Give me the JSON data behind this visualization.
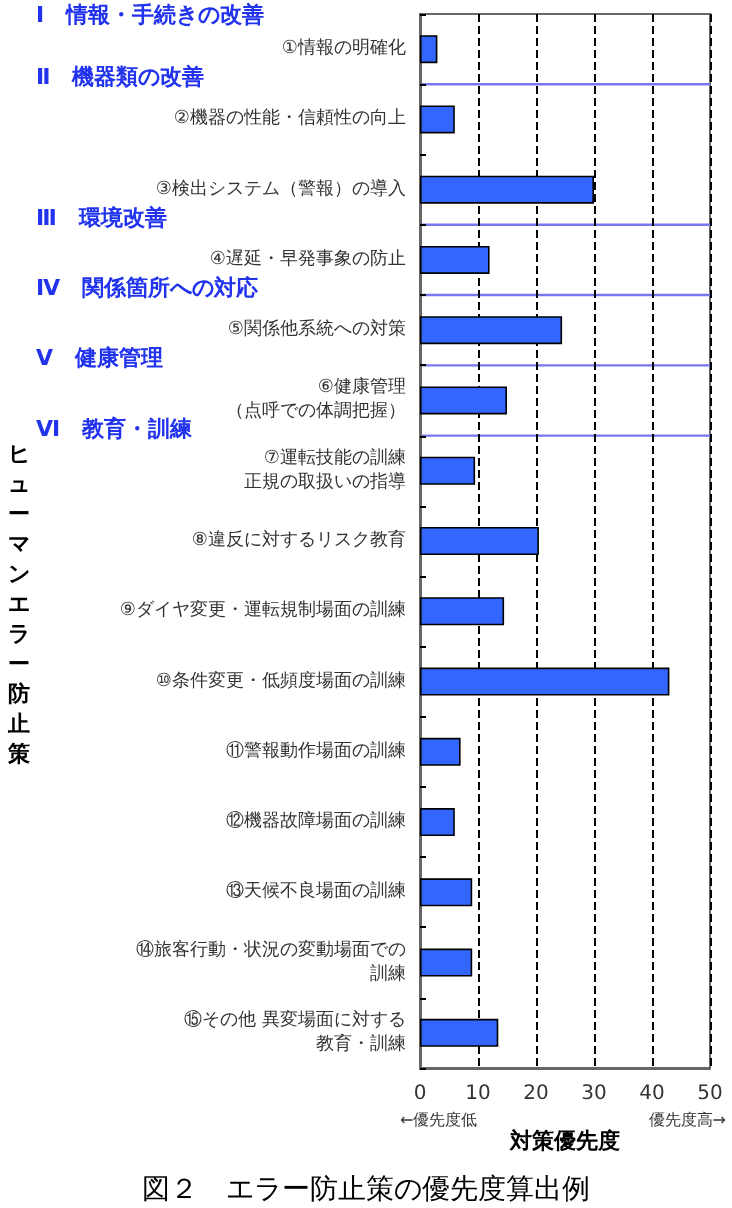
{
  "chart_data": {
    "type": "bar",
    "orientation": "horizontal",
    "title": "図２　エラー防止策の優先度算出例",
    "xlabel": "対策優先度",
    "ylabel": "ヒューマンエラー防止策",
    "categories": [
      "①情報の明確化",
      "②機器の性能・信頼性の向上",
      "③検出システム（警報）の導入",
      "④遅延・早発事象の防止",
      "⑤関係他系統への対策",
      "⑥健康管理（点呼での体調把握）",
      "⑦運転技能の訓練正規の取扱いの指導",
      "⑧違反に対するリスク教育",
      "⑨ダイヤ変更・運転規制場面の訓練",
      "⑩条件変更・低頻度場面の訓練",
      "⑪警報動作場面の訓練",
      "⑫機器故障場面の訓練",
      "⑬天候不良場面の訓練",
      "⑭旅客行動・状況の変動場面での訓練",
      "⑮その他 異変場面に対する教育・訓練"
    ],
    "values": [
      3,
      6,
      30,
      12,
      24.5,
      15,
      9.5,
      20.5,
      14.5,
      43,
      7,
      6,
      9,
      9,
      13.5
    ],
    "color": "#3366ff",
    "xlim": [
      0,
      50
    ],
    "xticks": [
      0,
      10,
      20,
      30,
      40,
      50
    ],
    "grid": "x",
    "annotations": [
      "Ⅰ　情報・手続きの改善",
      "Ⅱ　機器類の改善",
      "Ⅲ　環境改善",
      "Ⅳ　関係箇所への対応",
      "Ⅴ　健康管理",
      "Ⅵ　教育・訓練",
      "←優先度低",
      "優先度高→"
    ]
  }
}
